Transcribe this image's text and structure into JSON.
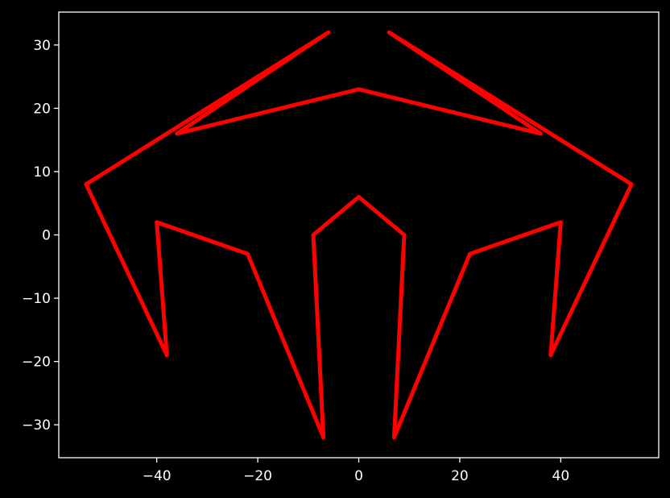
{
  "chart_data": {
    "type": "line",
    "title": "",
    "xlabel": "",
    "ylabel": "",
    "xlim": [
      -59.4,
      59.4
    ],
    "ylim": [
      -35.2,
      35.2
    ],
    "grid": false,
    "background_color": "#000000",
    "axis_color": "#ffffff",
    "x_ticks": [
      -40,
      -20,
      0,
      20,
      40
    ],
    "x_tick_labels": [
      "−40",
      "−20",
      "0",
      "20",
      "40"
    ],
    "y_ticks": [
      -30,
      -20,
      -10,
      0,
      10,
      20,
      30
    ],
    "y_tick_labels": [
      "−30",
      "−20",
      "−10",
      "0",
      "10",
      "20",
      "30"
    ],
    "series": [
      {
        "color": "#ff0000",
        "x": [
          -6,
          -36,
          0,
          36,
          6,
          54,
          38,
          40,
          22,
          7,
          9,
          0,
          -9,
          -7,
          -22,
          -40,
          -38,
          -54,
          -6
        ],
        "y": [
          32,
          16,
          23,
          16,
          32,
          8,
          -19,
          2,
          -3,
          -32,
          0,
          6,
          0,
          -32,
          -3,
          2,
          -19,
          8,
          32
        ]
      }
    ]
  }
}
